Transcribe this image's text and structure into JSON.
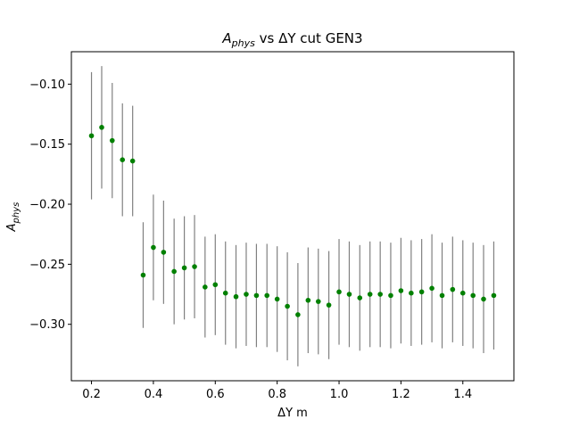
{
  "chart_data": {
    "type": "scatter",
    "title": {
      "main": "A",
      "sub": "phys",
      "rest": " vs ΔY cut GEN3"
    },
    "xlabel": "ΔY m",
    "ylabel": {
      "main": "A",
      "sub": "phys"
    },
    "xlim": [
      0.135,
      1.565
    ],
    "ylim": [
      -0.347,
      -0.073
    ],
    "xticks": [
      0.2,
      0.4,
      0.6,
      0.8,
      1.0,
      1.2,
      1.4
    ],
    "xtick_labels": [
      "0.2",
      "0.4",
      "0.6",
      "0.8",
      "1.0",
      "1.2",
      "1.4"
    ],
    "yticks": [
      -0.1,
      -0.15,
      -0.2,
      -0.25,
      -0.3
    ],
    "ytick_labels": [
      "−0.10",
      "−0.15",
      "−0.20",
      "−0.25",
      "−0.30"
    ],
    "grid": false,
    "marker_color": "#008000",
    "errorbar_color": "#808080",
    "series": [
      {
        "x": [
          0.2,
          0.233,
          0.267,
          0.3,
          0.333,
          0.367,
          0.4,
          0.433,
          0.467,
          0.5,
          0.533,
          0.567,
          0.6,
          0.633,
          0.667,
          0.7,
          0.733,
          0.767,
          0.8,
          0.833,
          0.867,
          0.9,
          0.933,
          0.967,
          1.0,
          1.033,
          1.067,
          1.1,
          1.133,
          1.167,
          1.2,
          1.233,
          1.267,
          1.3,
          1.333,
          1.367,
          1.4,
          1.433,
          1.467,
          1.5
        ],
        "y": [
          -0.143,
          -0.136,
          -0.147,
          -0.163,
          -0.164,
          -0.259,
          -0.236,
          -0.24,
          -0.256,
          -0.253,
          -0.252,
          -0.269,
          -0.267,
          -0.274,
          -0.277,
          -0.275,
          -0.276,
          -0.276,
          -0.279,
          -0.285,
          -0.292,
          -0.28,
          -0.281,
          -0.284,
          -0.273,
          -0.275,
          -0.278,
          -0.275,
          -0.275,
          -0.276,
          -0.272,
          -0.274,
          -0.273,
          -0.27,
          -0.276,
          -0.271,
          -0.274,
          -0.276,
          -0.279,
          -0.276
        ],
        "yerr": [
          0.053,
          0.051,
          0.048,
          0.047,
          0.046,
          0.044,
          0.044,
          0.043,
          0.044,
          0.043,
          0.043,
          0.042,
          0.042,
          0.043,
          0.043,
          0.043,
          0.043,
          0.043,
          0.044,
          0.045,
          0.043,
          0.044,
          0.044,
          0.045,
          0.044,
          0.044,
          0.044,
          0.044,
          0.044,
          0.044,
          0.044,
          0.044,
          0.044,
          0.045,
          0.044,
          0.044,
          0.044,
          0.044,
          0.045,
          0.045
        ]
      }
    ]
  }
}
